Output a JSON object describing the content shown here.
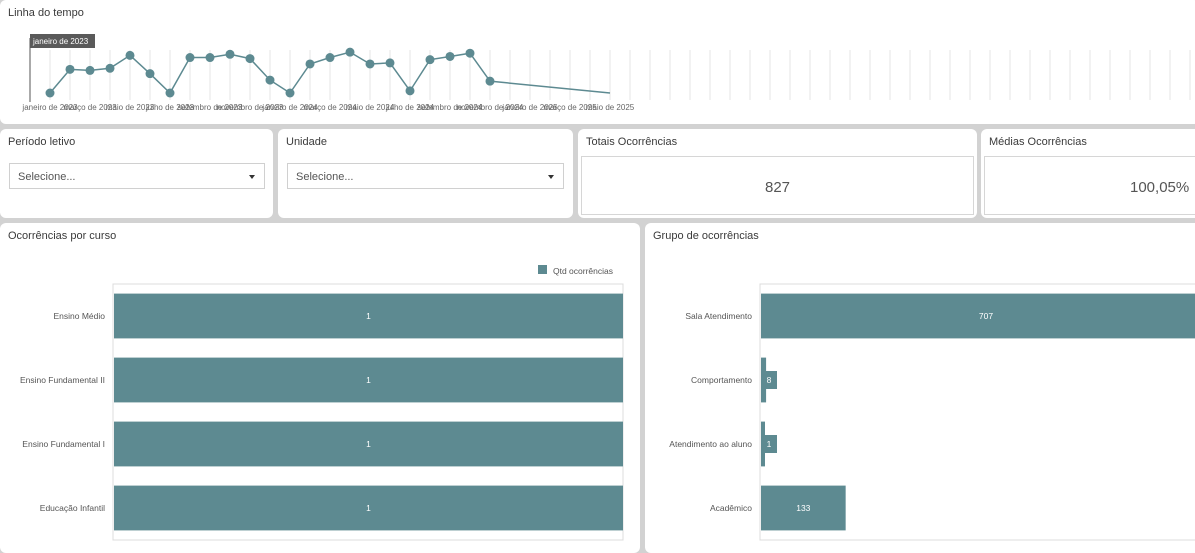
{
  "timeline": {
    "title": "Linha do tempo",
    "tooltip": "janeiro de 2023",
    "color": "#5d8a91",
    "tick_labels": [
      "janeiro de 2023",
      "março de 2023",
      "maio de 2023",
      "julho de 2023",
      "setembro de 2023",
      "novembro de 2023",
      "janeiro de 2024",
      "março de 2024",
      "maio de 2024",
      "julho de 2024",
      "setembro de 2024",
      "novembro de 2024",
      "janeiro de 2025",
      "março de 2025",
      "maio de 2025"
    ]
  },
  "filters": {
    "periodo": {
      "label": "Período letivo",
      "placeholder": "Selecione..."
    },
    "unidade": {
      "label": "Unidade",
      "placeholder": "Selecione..."
    }
  },
  "kpis": {
    "totais": {
      "label": "Totais Ocorrências",
      "value": "827"
    },
    "medias": {
      "label": "Médias Ocorrências",
      "value": "100,05%"
    }
  },
  "chart_data": [
    {
      "type": "line",
      "x": [
        "janeiro de 2023",
        "fevereiro de 2023",
        "março de 2023",
        "abril de 2023",
        "maio de 2023",
        "junho de 2023",
        "julho de 2023",
        "agosto de 2023",
        "setembro de 2023",
        "outubro de 2023",
        "novembro de 2023",
        "dezembro de 2023",
        "janeiro de 2024",
        "fevereiro de 2024",
        "março de 2024",
        "abril de 2024",
        "maio de 2024",
        "junho de 2024",
        "julho de 2024",
        "agosto de 2024",
        "setembro de 2024",
        "outubro de 2024",
        "novembro de 2024",
        "maio de 2025"
      ],
      "values": [
        0,
        22,
        21,
        23,
        35,
        18,
        0,
        33,
        33,
        36,
        32,
        12,
        0,
        27,
        33,
        38,
        27,
        28,
        2,
        31,
        34,
        37,
        11,
        0
      ],
      "grid": true
    },
    {
      "type": "bar",
      "orientation": "horizontal",
      "title": "Ocorrências por curso",
      "legend": "Qtd ocorrências",
      "legend_placement": "top-right",
      "categories": [
        "Ensino Médio",
        "Ensino Fundamental II",
        "Ensino Fundamental I",
        "Educação Infantil"
      ],
      "values": [
        1,
        1,
        1,
        1
      ],
      "xlim": [
        0,
        1
      ]
    },
    {
      "type": "bar",
      "orientation": "horizontal",
      "title": "Grupo de ocorrências",
      "categories": [
        "Sala Atendimento",
        "Comportamento",
        "Atendimento ao aluno",
        "Acadêmico"
      ],
      "values": [
        707,
        8,
        1,
        133
      ],
      "xlim": [
        0,
        707
      ]
    }
  ]
}
